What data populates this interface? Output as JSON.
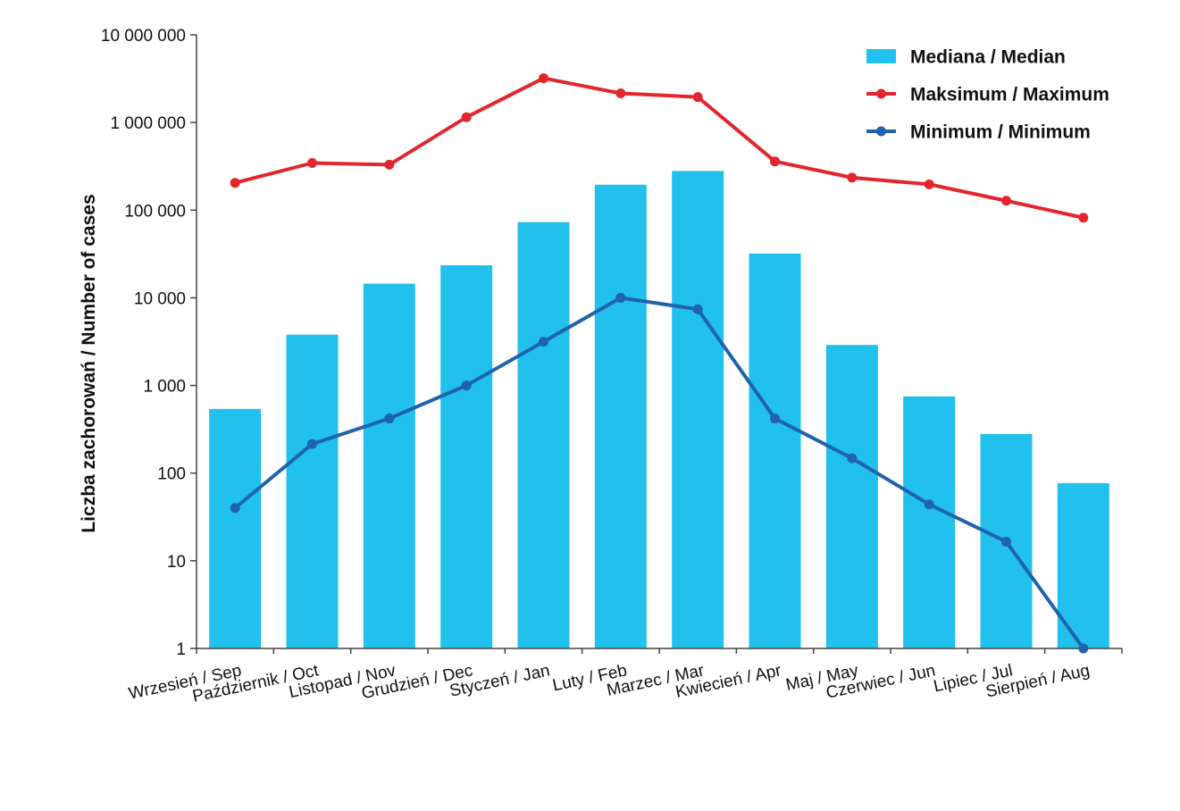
{
  "chart_data": {
    "type": "bar",
    "title": "",
    "xlabel": "",
    "ylabel": "Liczba zachorowań  /  Number of cases",
    "yscale": "log",
    "ylim": [
      1,
      10000000
    ],
    "yticks": [
      {
        "value": 1,
        "label": "1"
      },
      {
        "value": 10,
        "label": "10"
      },
      {
        "value": 100,
        "label": "100"
      },
      {
        "value": 1000,
        "label": "1 000"
      },
      {
        "value": 10000,
        "label": "10 000"
      },
      {
        "value": 100000,
        "label": "100 000"
      },
      {
        "value": 1000000,
        "label": "1 000 000"
      },
      {
        "value": 10000000,
        "label": "10 000 000"
      }
    ],
    "grid": false,
    "legend_position": "top-right",
    "categories": [
      "Wrzesień / Sep",
      "Październik / Oct",
      "Listopad / Nov",
      "Grudzień / Dec",
      "Styczeń  / Jan",
      "Luty / Feb",
      "Marzec / Mar",
      "Kwiecień / Apr",
      "Maj / May",
      "Czerwiec / Jun",
      "Lipiec / Jul",
      "Sierpień / Aug"
    ],
    "series": [
      {
        "name": "Mediana  /  Median",
        "type": "bar",
        "color": "#22c0ed",
        "values": [
          540,
          3800,
          14500,
          23500,
          73000,
          195000,
          280000,
          32000,
          2900,
          750,
          280,
          77
        ]
      },
      {
        "name": "Maksimum  /  Maximum",
        "type": "line",
        "color": "#e3262e",
        "values": [
          205000,
          345000,
          330000,
          1150000,
          3200000,
          2150000,
          1950000,
          360000,
          235000,
          197000,
          128000,
          82000
        ]
      },
      {
        "name": "Minimum  /  Minimum",
        "type": "line",
        "color": "#1f63ad",
        "values": [
          40,
          215,
          420,
          1000,
          3150,
          10000,
          7400,
          420,
          148,
          44,
          16.5,
          1
        ]
      }
    ]
  }
}
